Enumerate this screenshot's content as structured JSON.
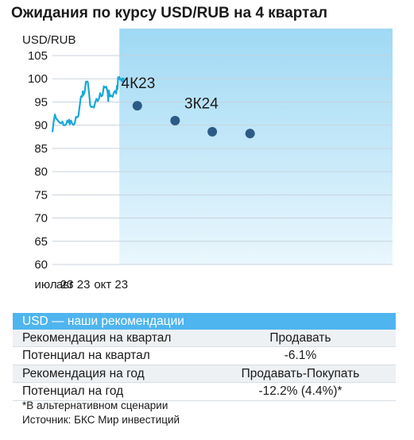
{
  "title": "Ожидания по курсу USD/RUB на 4 квартал",
  "chart_data": {
    "type": "line",
    "ylabel": "USD/RUB",
    "ylim": [
      60,
      105
    ],
    "yticks": [
      60,
      65,
      70,
      75,
      80,
      85,
      90,
      95,
      100,
      105
    ],
    "xlim": [
      "2023-07-01",
      "2024-12-31"
    ],
    "xticks": [
      {
        "date": "2023-07-01",
        "label": "июл 23"
      },
      {
        "date": "2023-08-01",
        "label": "авг 23"
      },
      {
        "date": "2023-10-01",
        "label": "окт 23"
      }
    ],
    "grid": "horizontal",
    "forecast_shaded_from": "2023-10-17",
    "series": [
      {
        "style": "line",
        "color": "#1aa7d9",
        "points": [
          [
            "2023-07-01",
            88.5
          ],
          [
            "2023-07-03",
            90.9
          ],
          [
            "2023-07-05",
            92.3
          ],
          [
            "2023-07-07",
            91.4
          ],
          [
            "2023-07-09",
            91.2
          ],
          [
            "2023-07-11",
            90.8
          ],
          [
            "2023-07-13",
            90.5
          ],
          [
            "2023-07-15",
            90.4
          ],
          [
            "2023-07-17",
            90.8
          ],
          [
            "2023-07-19",
            90.0
          ],
          [
            "2023-07-21",
            90.0
          ],
          [
            "2023-07-23",
            90.2
          ],
          [
            "2023-07-25",
            91.0
          ],
          [
            "2023-07-27",
            90.6
          ],
          [
            "2023-07-28",
            91.2
          ],
          [
            "2023-07-29",
            90.2
          ],
          [
            "2023-07-31",
            91.0
          ],
          [
            "2023-08-02",
            90.3
          ],
          [
            "2023-08-04",
            90.1
          ],
          [
            "2023-08-06",
            90.4
          ],
          [
            "2023-08-08",
            91.8
          ],
          [
            "2023-08-10",
            91.7
          ],
          [
            "2023-08-12",
            92.0
          ],
          [
            "2023-08-14",
            94.2
          ],
          [
            "2023-08-16",
            96.2
          ],
          [
            "2023-08-18",
            96.1
          ],
          [
            "2023-08-19",
            97.3
          ],
          [
            "2023-08-20",
            96.5
          ],
          [
            "2023-08-22",
            97.1
          ],
          [
            "2023-08-24",
            99.4
          ],
          [
            "2023-08-27",
            99.4
          ],
          [
            "2023-08-29",
            97.0
          ],
          [
            "2023-08-31",
            94.2
          ],
          [
            "2023-09-02",
            93.9
          ],
          [
            "2023-09-04",
            94.0
          ],
          [
            "2023-09-06",
            93.8
          ],
          [
            "2023-09-08",
            94.9
          ],
          [
            "2023-09-10",
            95.7
          ],
          [
            "2023-09-12",
            95.2
          ],
          [
            "2023-09-14",
            95.7
          ],
          [
            "2023-09-16",
            96.9
          ],
          [
            "2023-09-18",
            96.2
          ],
          [
            "2023-09-20",
            96.5
          ],
          [
            "2023-09-22",
            98.4
          ],
          [
            "2023-09-24",
            98.1
          ],
          [
            "2023-09-26",
            98.3
          ],
          [
            "2023-09-28",
            97.2
          ],
          [
            "2023-09-29",
            95.2
          ],
          [
            "2023-09-30",
            97.5
          ],
          [
            "2023-10-02",
            96.2
          ],
          [
            "2023-10-04",
            96.4
          ],
          [
            "2023-10-06",
            96.1
          ],
          [
            "2023-10-08",
            97.0
          ],
          [
            "2023-10-10",
            97.4
          ],
          [
            "2023-10-12",
            96.8
          ],
          [
            "2023-10-13",
            98.5
          ],
          [
            "2023-10-14",
            97.8
          ],
          [
            "2023-10-15",
            100.3
          ],
          [
            "2023-10-17",
            100.4
          ],
          [
            "2023-10-18",
            99.8
          ],
          [
            "2023-10-20",
            99.9
          ],
          [
            "2023-10-21",
            99.5
          ],
          [
            "2023-10-22",
            100.1
          ],
          [
            "2023-10-23",
            99.1
          ],
          [
            "2023-10-24",
            100.2
          ]
        ]
      },
      {
        "style": "markers",
        "color": "#2d5b86",
        "points": [
          [
            "2023-11-15",
            94.2
          ],
          [
            "2024-01-15",
            91.0
          ],
          [
            "2024-03-15",
            88.6
          ],
          [
            "2024-05-15",
            88.2
          ]
        ]
      }
    ],
    "annotations": [
      {
        "text": "4К23",
        "date": "2023-10-20",
        "value": 98.0
      },
      {
        "text": "3К24",
        "date": "2024-01-30",
        "value": 93.6
      }
    ]
  },
  "recommendations": {
    "header": "USD — наши рекомендации",
    "rows": [
      {
        "label": "Рекомендация на квартал",
        "value": "Продавать"
      },
      {
        "label": "Потенциал на квартал",
        "value": "-6.1%"
      },
      {
        "label": "Рекомендация на год",
        "value": "Продавать-Покупать"
      },
      {
        "label": "Потенциал на год",
        "value": "-12.2% (4.4%)*"
      }
    ]
  },
  "footnote": "*В альтернативном сценарии",
  "source": "Источник: БКС Мир инвестиций"
}
